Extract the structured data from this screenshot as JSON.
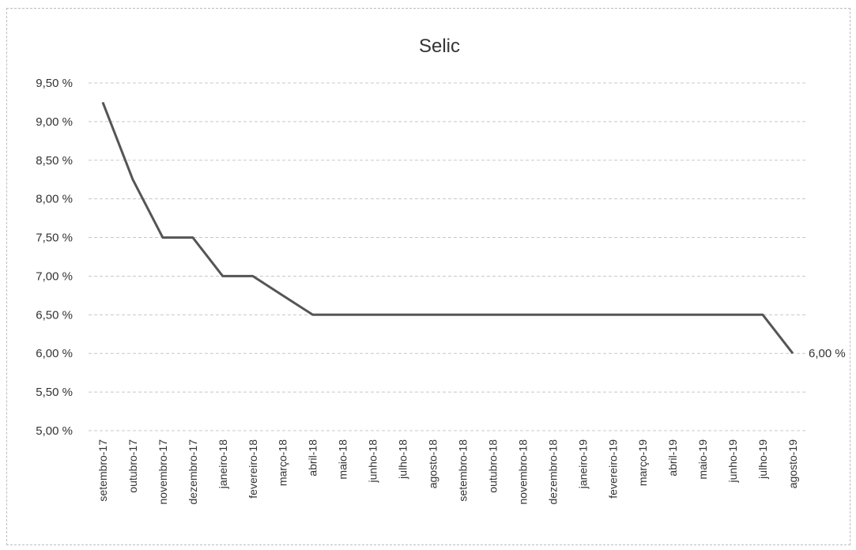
{
  "chart_data": {
    "type": "line",
    "title": "Selic",
    "xlabel": "",
    "ylabel": "",
    "ylim": [
      5.0,
      9.5
    ],
    "y_ticks": [
      "5,00 %",
      "5,50 %",
      "6,00 %",
      "6,50 %",
      "7,00 %",
      "7,50 %",
      "8,00 %",
      "8,50 %",
      "9,00 %",
      "9,50 %"
    ],
    "grid": true,
    "legend": "none",
    "categories": [
      "setembro-17",
      "outubro-17",
      "novembro-17",
      "dezembro-17",
      "janeiro-18",
      "fevereiro-18",
      "março-18",
      "abril-18",
      "maio-18",
      "junho-18",
      "julho-18",
      "agosto-18",
      "setembro-18",
      "outubro-18",
      "novembro-18",
      "dezembro-18",
      "janeiro-19",
      "fevereiro-19",
      "março-19",
      "abril-19",
      "maio-19",
      "junho-19",
      "julho-19",
      "agosto-19"
    ],
    "series": [
      {
        "values": [
          9.25,
          8.25,
          7.5,
          7.5,
          7.0,
          7.0,
          6.75,
          6.5,
          6.5,
          6.5,
          6.5,
          6.5,
          6.5,
          6.5,
          6.5,
          6.5,
          6.5,
          6.5,
          6.5,
          6.5,
          6.5,
          6.5,
          6.5,
          6.0
        ]
      }
    ],
    "end_label": "6,00 %",
    "line_color": "#555555",
    "grid_color": "#c8c8c8"
  }
}
